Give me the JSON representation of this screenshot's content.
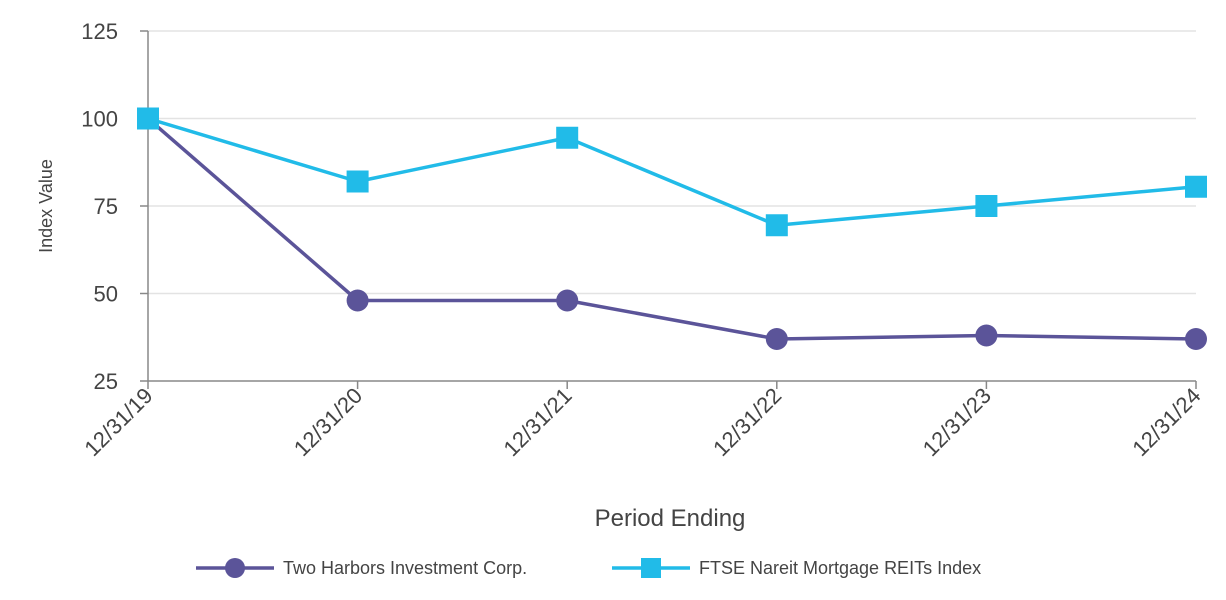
{
  "chart_data": {
    "type": "line",
    "title": "",
    "xlabel": "Period Ending",
    "ylabel": "Index Value",
    "categories": [
      "12/31/19",
      "12/31/20",
      "12/31/21",
      "12/31/22",
      "12/31/23",
      "12/31/24"
    ],
    "ylim": [
      25,
      125
    ],
    "yticks": [
      25,
      50,
      75,
      100,
      125
    ],
    "grid": true,
    "legend_position": "bottom",
    "series": [
      {
        "name": "Two Harbors Investment Corp.",
        "marker": "circle",
        "color": "#5B5499",
        "values": [
          100,
          48,
          48,
          37,
          38,
          37
        ]
      },
      {
        "name": "FTSE Nareit Mortgage REITs Index",
        "marker": "square",
        "color": "#21BBE8",
        "values": [
          100,
          82,
          94.5,
          69.5,
          75,
          80.5
        ]
      }
    ]
  }
}
